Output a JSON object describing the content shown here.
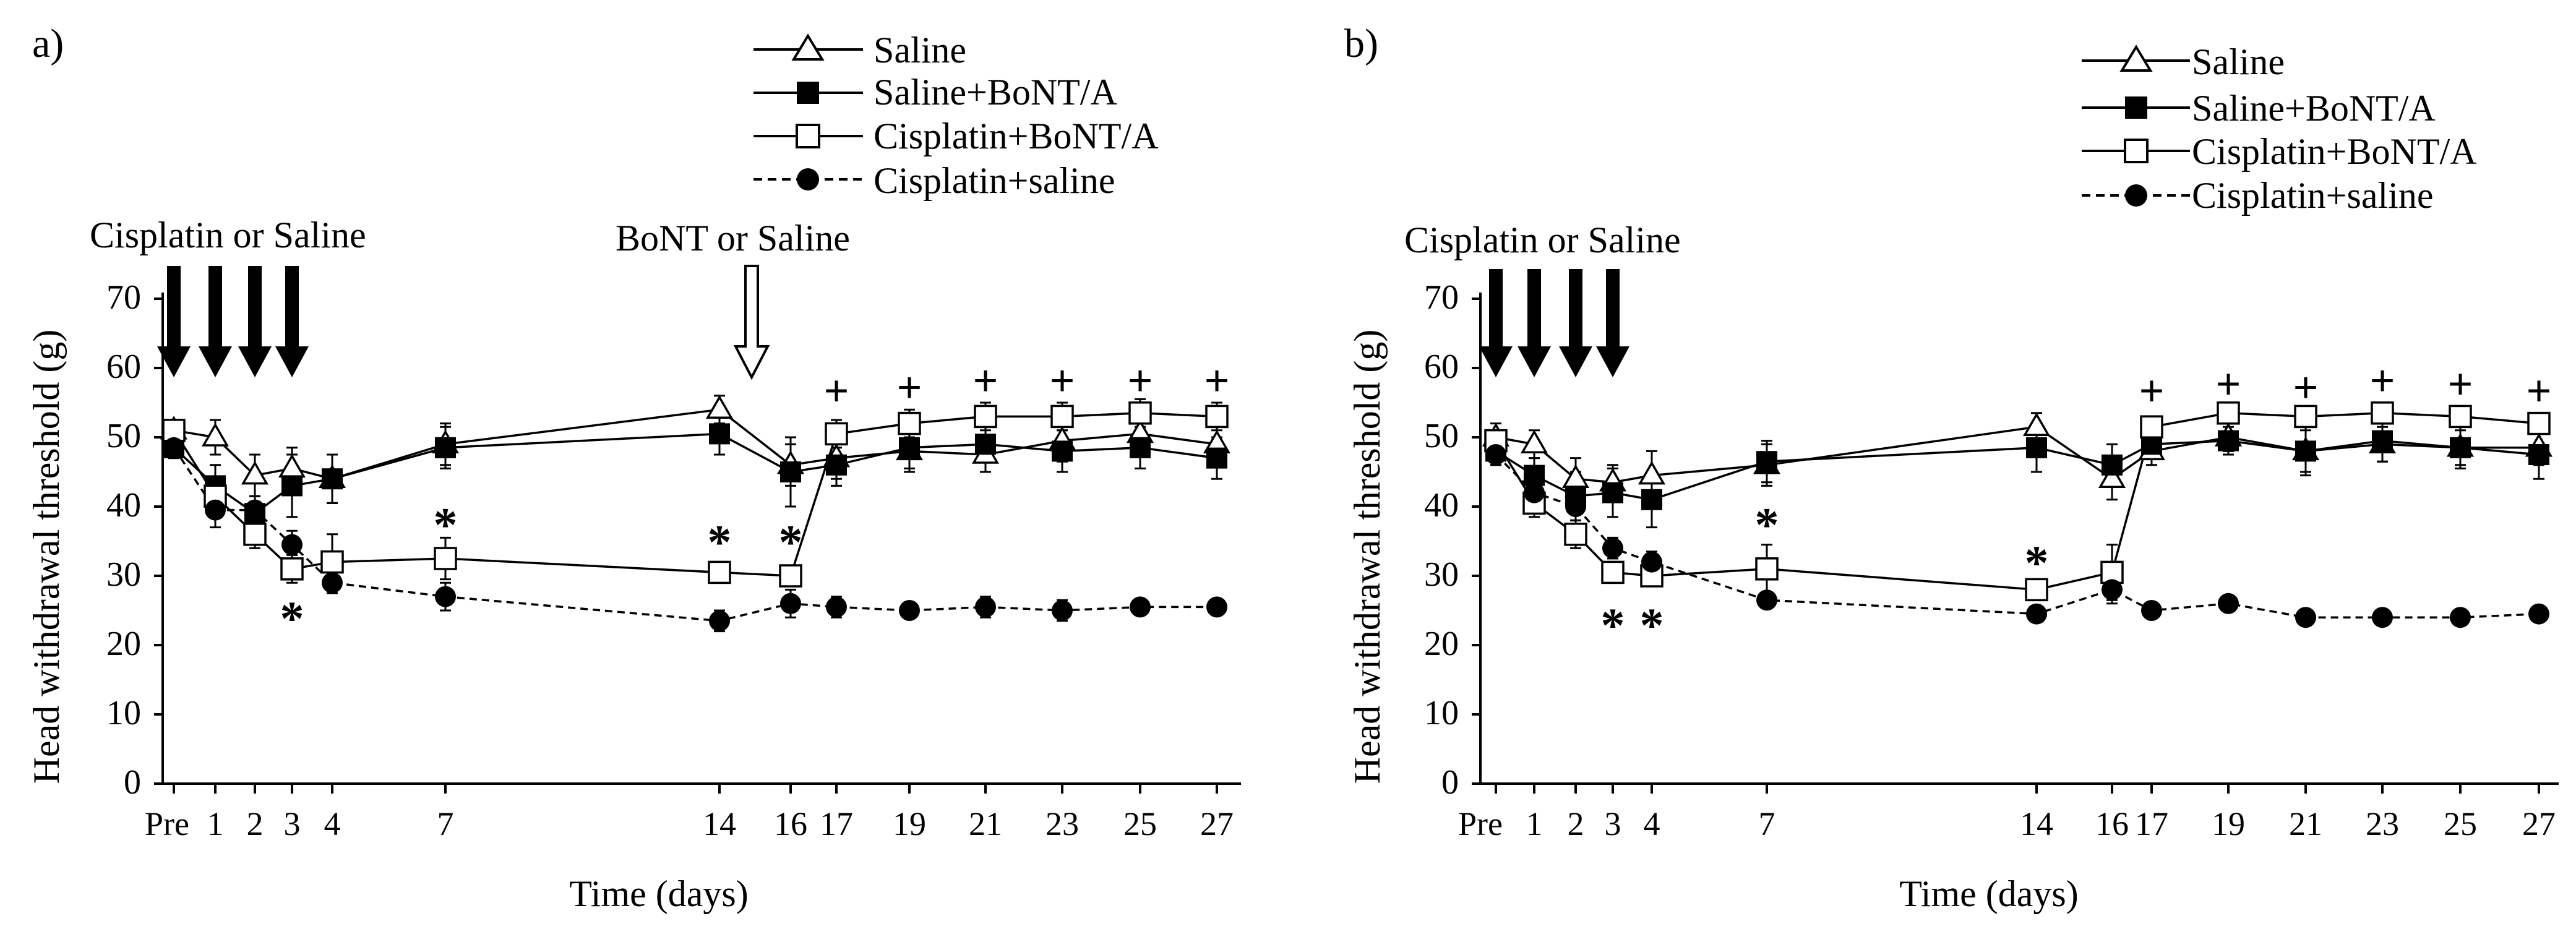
{
  "chart_data": [
    {
      "panel_label": "a)",
      "type": "line",
      "xlabel": "Time (days)",
      "ylabel": "Head withdrawal threshold (g)",
      "ylim": [
        0,
        70
      ],
      "yticks": [
        0,
        10,
        20,
        30,
        40,
        50,
        60,
        70
      ],
      "x_tick_labels": [
        "Pre",
        "1",
        "2",
        "3",
        "4",
        "7",
        "14",
        "16",
        "17",
        "19",
        "21",
        "23",
        "25",
        "27"
      ],
      "legend_position": "top-right",
      "series": [
        {
          "name": "Saline",
          "marker": "open-triangle",
          "line": "solid",
          "x": [
            0,
            1,
            2,
            3,
            4,
            7,
            14,
            16,
            17,
            19,
            21,
            23,
            25,
            27
          ],
          "y": [
            51,
            50,
            44.5,
            45.5,
            44,
            49,
            54,
            46,
            47,
            48,
            47.5,
            49.5,
            50.5,
            49
          ],
          "err": [
            1.5,
            2.5,
            3,
            3,
            3.5,
            3,
            2,
            3,
            3,
            3,
            2.5,
            3,
            3,
            3
          ]
        },
        {
          "name": "Saline+BoNT/A",
          "marker": "filled-square",
          "line": "solid",
          "x": [
            0,
            1,
            2,
            3,
            4,
            7,
            14,
            16,
            17,
            19,
            21,
            23,
            25,
            27
          ],
          "y": [
            48.5,
            43,
            39,
            43,
            44,
            48.5,
            50.5,
            45,
            46,
            48.5,
            49,
            48,
            48.5,
            47
          ],
          "err": [
            1.5,
            3,
            2.5,
            4.5,
            3.5,
            3,
            3,
            5,
            3,
            3,
            2.5,
            3,
            3,
            3
          ]
        },
        {
          "name": "Cisplatin+BoNT/A",
          "marker": "open-square",
          "line": "solid",
          "x": [
            0,
            1,
            2,
            3,
            4,
            7,
            14,
            16,
            17,
            19,
            21,
            23,
            25,
            27
          ],
          "y": [
            51,
            41.5,
            36,
            31,
            32,
            32.5,
            30.5,
            30,
            50.5,
            52,
            53,
            53,
            53.5,
            53
          ],
          "err": [
            1.5,
            2,
            2,
            2,
            4,
            3,
            1.5,
            1.5,
            2,
            2,
            2,
            2,
            2,
            2
          ]
        },
        {
          "name": "Cisplatin+saline",
          "marker": "filled-circle",
          "line": "dashed",
          "x": [
            0,
            1,
            2,
            3,
            4,
            7,
            14,
            16,
            17,
            19,
            21,
            23,
            25,
            27
          ],
          "y": [
            48.5,
            39.5,
            39.5,
            34.5,
            29,
            27,
            23.5,
            26,
            25.5,
            25,
            25.5,
            25,
            25.5,
            25.5
          ],
          "err": [
            1.5,
            2.5,
            2,
            2,
            1.5,
            2,
            1.5,
            2,
            1.5,
            1,
            1.5,
            1.5,
            1,
            1
          ]
        }
      ],
      "treatment_arrows": {
        "filled_label": "Cisplatin or Saline",
        "filled_days": [
          0,
          1,
          2,
          3
        ],
        "open_label": "BoNT or Saline",
        "open_day": 15
      },
      "annotations": [
        {
          "text": "*",
          "x": 3,
          "y": 23.5
        },
        {
          "text": "*",
          "x": 7,
          "y": 37
        },
        {
          "text": "*",
          "x": 14,
          "y": 34.5
        },
        {
          "text": "*",
          "x": 16,
          "y": 34.5
        },
        {
          "text": "+",
          "x": 17,
          "y": 56.5
        },
        {
          "text": "+",
          "x": 19,
          "y": 57
        },
        {
          "text": "+",
          "x": 21,
          "y": 58
        },
        {
          "text": "+",
          "x": 23,
          "y": 58
        },
        {
          "text": "+",
          "x": 25,
          "y": 58
        },
        {
          "text": "+",
          "x": 27,
          "y": 58
        }
      ]
    },
    {
      "panel_label": "b)",
      "type": "line",
      "xlabel": "Time (days)",
      "ylabel": "Head withdrawal threshold (g)",
      "ylim": [
        0,
        70
      ],
      "yticks": [
        0,
        10,
        20,
        30,
        40,
        50,
        60,
        70
      ],
      "x_tick_labels": [
        "Pre",
        "1",
        "2",
        "3",
        "4",
        "7",
        "14",
        "16",
        "17",
        "19",
        "21",
        "23",
        "25",
        "27"
      ],
      "legend_position": "top-right",
      "series": [
        {
          "name": "Saline",
          "marker": "open-triangle",
          "line": "solid",
          "x": [
            0,
            1,
            2,
            3,
            4,
            7,
            14,
            16,
            17,
            19,
            21,
            23,
            25,
            27
          ],
          "y": [
            50,
            49,
            44,
            43.5,
            44.5,
            46,
            51.5,
            44,
            48,
            50,
            48,
            49,
            48.5,
            48.5
          ],
          "err": [
            2,
            2,
            3,
            2.5,
            3.5,
            3,
            2,
            3,
            2,
            2,
            3,
            2.5,
            2.5,
            2.5
          ]
        },
        {
          "name": "Saline+BoNT/A",
          "marker": "filled-square",
          "line": "solid",
          "x": [
            0,
            1,
            2,
            3,
            4,
            7,
            14,
            16,
            17,
            19,
            21,
            23,
            25,
            27
          ],
          "y": [
            48,
            44.5,
            41.5,
            42,
            41,
            46.5,
            48.5,
            46,
            49,
            49.5,
            48,
            49.5,
            48.5,
            47.5
          ],
          "err": [
            2,
            2.5,
            3.5,
            3.5,
            4,
            3,
            3.5,
            3,
            2,
            2,
            3.5,
            3,
            3,
            3.5
          ]
        },
        {
          "name": "Cisplatin+BoNT/A",
          "marker": "open-square",
          "line": "solid",
          "x": [
            0,
            1,
            2,
            3,
            4,
            7,
            14,
            16,
            17,
            19,
            21,
            23,
            25,
            27
          ],
          "y": [
            49.5,
            40.5,
            36,
            30.5,
            30,
            31,
            28,
            30.5,
            51.5,
            53.5,
            53,
            53.5,
            53,
            52
          ],
          "err": [
            1.5,
            2,
            2,
            1.5,
            1.5,
            3.5,
            1.5,
            4,
            1.5,
            1.5,
            1.5,
            1.5,
            1.5,
            1.5
          ]
        },
        {
          "name": "Cisplatin+saline",
          "marker": "filled-circle",
          "line": "dashed",
          "x": [
            0,
            1,
            2,
            3,
            4,
            7,
            14,
            16,
            17,
            19,
            21,
            23,
            25,
            27
          ],
          "y": [
            47.5,
            42,
            40,
            34,
            32,
            26.5,
            24.5,
            28,
            25,
            26,
            24,
            24,
            24,
            24.5
          ],
          "err": [
            1.5,
            2.5,
            2,
            1.5,
            1.5,
            1,
            1,
            2,
            1,
            1,
            1,
            1,
            1,
            1
          ]
        }
      ],
      "treatment_arrows": {
        "filled_label": "Cisplatin or Saline",
        "filled_days": [
          0,
          1,
          2,
          3
        ]
      },
      "annotations": [
        {
          "text": "*",
          "x": 3,
          "y": 22.5
        },
        {
          "text": "*",
          "x": 4,
          "y": 22.5
        },
        {
          "text": "*",
          "x": 7,
          "y": 37
        },
        {
          "text": "*",
          "x": 14,
          "y": 31.5
        },
        {
          "text": "+",
          "x": 17,
          "y": 56.5
        },
        {
          "text": "+",
          "x": 19,
          "y": 57.5
        },
        {
          "text": "+",
          "x": 21,
          "y": 57
        },
        {
          "text": "+",
          "x": 23,
          "y": 58
        },
        {
          "text": "+",
          "x": 25,
          "y": 57.5
        },
        {
          "text": "+",
          "x": 27,
          "y": 56.5
        }
      ]
    }
  ]
}
